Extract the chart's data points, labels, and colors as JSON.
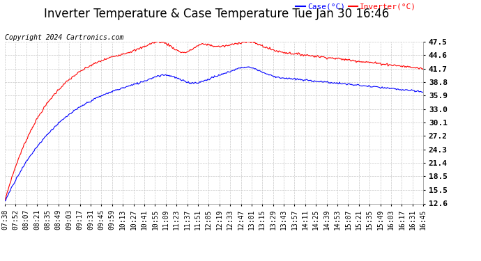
{
  "title": "Inverter Temperature & Case Temperature Tue Jan 30 16:46",
  "copyright": "Copyright 2024 Cartronics.com",
  "legend_labels": [
    "Case(°C)",
    "Inverter(°C)"
  ],
  "legend_colors": [
    "blue",
    "red"
  ],
  "case_color": "blue",
  "inverter_color": "red",
  "background_color": "#ffffff",
  "grid_color": "#c8c8c8",
  "ylim": [
    12.6,
    47.5
  ],
  "yticks": [
    12.6,
    15.5,
    18.5,
    21.4,
    24.3,
    27.2,
    30.1,
    33.0,
    35.9,
    38.8,
    41.7,
    44.6,
    47.5
  ],
  "xtick_labels": [
    "07:38",
    "07:52",
    "08:07",
    "08:21",
    "08:35",
    "08:49",
    "09:03",
    "09:17",
    "09:31",
    "09:45",
    "09:59",
    "10:13",
    "10:27",
    "10:41",
    "10:55",
    "11:09",
    "11:23",
    "11:37",
    "11:51",
    "12:05",
    "12:19",
    "12:33",
    "12:47",
    "13:01",
    "13:15",
    "13:29",
    "13:43",
    "13:57",
    "14:11",
    "14:25",
    "14:39",
    "14:53",
    "15:07",
    "15:21",
    "15:35",
    "15:49",
    "16:03",
    "16:17",
    "16:31",
    "16:45"
  ],
  "n_points": 500,
  "title_fontsize": 12,
  "ytick_fontsize": 8,
  "xtick_fontsize": 7,
  "copyright_fontsize": 7,
  "legend_fontsize": 8
}
